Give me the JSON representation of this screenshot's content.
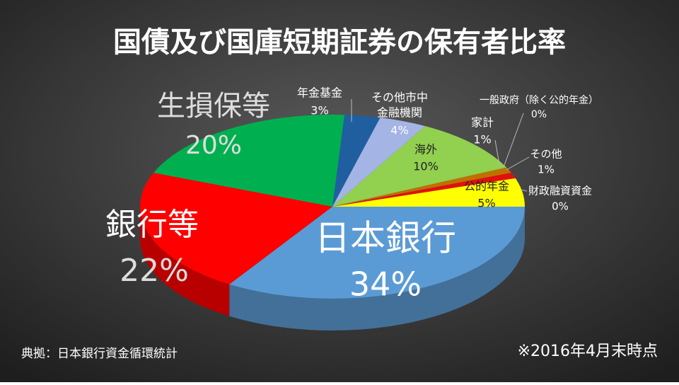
{
  "chart_data": {
    "type": "pie",
    "title": "国債及び国庫短期証券の保有者比率",
    "categories": [
      "日本銀行",
      "銀行等",
      "生損保等",
      "年金基金",
      "その他市中\n金融機関",
      "海外",
      "家計",
      "一般政府（除く公的年金）",
      "その他",
      "公的年金",
      "財政融資資金"
    ],
    "values": [
      34,
      22,
      20,
      3,
      4,
      10,
      1,
      0,
      1,
      5,
      0
    ],
    "value_labels": [
      "34%",
      "22%",
      "20%",
      "3%",
      "4%",
      "10%",
      "1%",
      "0%",
      "1%",
      "5%",
      "0%"
    ],
    "colors": [
      "#5b9bd5",
      "#ff0000",
      "#00b050",
      "#1f5fa0",
      "#a4b4e4",
      "#92d050",
      "#c07000",
      "#7f7f7f",
      "#e01010",
      "#ffff00",
      "#f4a020"
    ],
    "source": "典拠：日本銀行資金循環統計",
    "note": "※2016年4月末時点"
  }
}
